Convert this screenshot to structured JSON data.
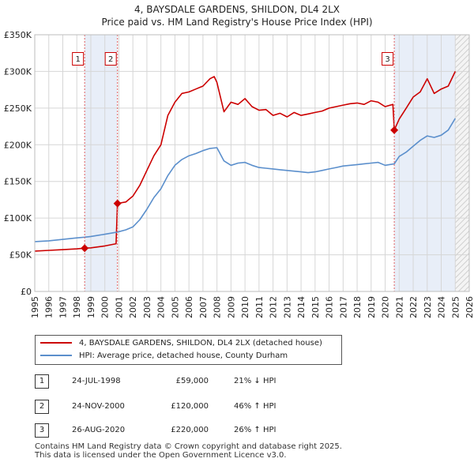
{
  "header": {
    "title_line1": "4, BAYSDALE GARDENS, SHILDON, DL4 2LX",
    "title_line2": "Price paid vs. HM Land Registry's House Price Index (HPI)"
  },
  "colors": {
    "price_line": "#cc0000",
    "hpi_line": "#5b8fcc",
    "shade": "#e8eef8",
    "marker_line": "#e06060",
    "grid": "#d6d6d6"
  },
  "chart_data": {
    "type": "line",
    "title": "4, BAYSDALE GARDENS, SHILDON, DL4 2LX",
    "subtitle": "Price paid vs. HM Land Registry's House Price Index (HPI)",
    "xlabel": "",
    "ylabel": "",
    "xlim": [
      1995,
      2026
    ],
    "ylim": [
      0,
      350000
    ],
    "grid": true,
    "y_ticks": [
      0,
      50000,
      100000,
      150000,
      200000,
      250000,
      300000,
      350000
    ],
    "y_tick_labels": [
      "£0",
      "£50K",
      "£100K",
      "£150K",
      "£200K",
      "£250K",
      "£300K",
      "£350K"
    ],
    "x_ticks": [
      1995,
      1996,
      1997,
      1998,
      1999,
      2000,
      2001,
      2002,
      2003,
      2004,
      2005,
      2006,
      2007,
      2008,
      2009,
      2010,
      2011,
      2012,
      2013,
      2014,
      2015,
      2016,
      2017,
      2018,
      2019,
      2020,
      2021,
      2022,
      2023,
      2024,
      2025,
      2026
    ],
    "x_tick_labels": [
      "1995",
      "1996",
      "1997",
      "1998",
      "1999",
      "2000",
      "2001",
      "2002",
      "2003",
      "2004",
      "2005",
      "2006",
      "2007",
      "2008",
      "2009",
      "2010",
      "2011",
      "2012",
      "2013",
      "2014",
      "2015",
      "2016",
      "2017",
      "2018",
      "2019",
      "2020",
      "2021",
      "2022",
      "2023",
      "2024",
      "2025",
      "2026"
    ],
    "shaded_ranges": [
      [
        1998.56,
        2000.9
      ],
      [
        2020.65,
        2025.0
      ]
    ],
    "future_range": [
      2025.0,
      2026.0
    ],
    "series": [
      {
        "name": "4, BAYSDALE GARDENS, SHILDON, DL4 2LX (detached house)",
        "color": "#cc0000",
        "x": [
          1995.0,
          1996.0,
          1997.0,
          1998.0,
          1998.56,
          1999.0,
          2000.0,
          2000.8,
          2000.9,
          2001.5,
          2002.0,
          2002.5,
          2003.0,
          2003.5,
          2004.0,
          2004.5,
          2005.0,
          2005.5,
          2006.0,
          2006.5,
          2007.0,
          2007.5,
          2007.8,
          2008.0,
          2008.5,
          2009.0,
          2009.5,
          2010.0,
          2010.5,
          2011.0,
          2011.5,
          2012.0,
          2012.5,
          2013.0,
          2013.5,
          2014.0,
          2014.5,
          2015.0,
          2015.5,
          2016.0,
          2016.5,
          2017.0,
          2017.5,
          2018.0,
          2018.5,
          2019.0,
          2019.5,
          2020.0,
          2020.55,
          2020.65,
          2021.0,
          2021.5,
          2022.0,
          2022.5,
          2023.0,
          2023.5,
          2024.0,
          2024.5,
          2025.0
        ],
        "values": [
          55000,
          56000,
          57000,
          58000,
          59000,
          59500,
          62000,
          65000,
          120000,
          122000,
          130000,
          145000,
          165000,
          185000,
          200000,
          240000,
          258000,
          270000,
          272000,
          276000,
          280000,
          290000,
          293000,
          285000,
          245000,
          258000,
          255000,
          263000,
          252000,
          247000,
          248000,
          240000,
          243000,
          238000,
          244000,
          240000,
          242000,
          244000,
          246000,
          250000,
          252000,
          254000,
          256000,
          257000,
          255000,
          260000,
          258000,
          252000,
          255000,
          220000,
          235000,
          250000,
          265000,
          272000,
          290000,
          270000,
          276000,
          280000,
          300000
        ]
      },
      {
        "name": "HPI: Average price, detached house, County Durham",
        "color": "#5b8fcc",
        "x": [
          1995.0,
          1996.0,
          1997.0,
          1998.0,
          1998.56,
          1999.0,
          2000.0,
          2000.9,
          2001.5,
          2002.0,
          2002.5,
          2003.0,
          2003.5,
          2004.0,
          2004.5,
          2005.0,
          2005.5,
          2006.0,
          2006.5,
          2007.0,
          2007.5,
          2008.0,
          2008.5,
          2009.0,
          2009.5,
          2010.0,
          2010.5,
          2011.0,
          2011.5,
          2012.0,
          2012.5,
          2013.0,
          2013.5,
          2014.0,
          2014.5,
          2015.0,
          2015.5,
          2016.0,
          2016.5,
          2017.0,
          2017.5,
          2018.0,
          2018.5,
          2019.0,
          2019.5,
          2020.0,
          2020.65,
          2021.0,
          2021.5,
          2022.0,
          2022.5,
          2023.0,
          2023.5,
          2024.0,
          2024.5,
          2025.0
        ],
        "values": [
          68000,
          69000,
          71000,
          73000,
          74000,
          75000,
          78000,
          81000,
          84000,
          88000,
          98000,
          112000,
          128000,
          140000,
          158000,
          172000,
          180000,
          185000,
          188000,
          192000,
          195000,
          196000,
          178000,
          172000,
          175000,
          176000,
          172000,
          169000,
          168000,
          167000,
          166000,
          165000,
          164000,
          163000,
          162000,
          163000,
          165000,
          167000,
          169000,
          171000,
          172000,
          173000,
          174000,
          175000,
          176000,
          172000,
          174000,
          184000,
          190000,
          198000,
          206000,
          212000,
          210000,
          213000,
          220000,
          236000
        ]
      }
    ],
    "transactions": [
      {
        "label": "1",
        "x": 1998.56,
        "price": 59000
      },
      {
        "label": "2",
        "x": 2000.9,
        "price": 120000
      },
      {
        "label": "3",
        "x": 2020.65,
        "price": 220000
      }
    ]
  },
  "legend": {
    "items": [
      {
        "label": "4, BAYSDALE GARDENS, SHILDON, DL4 2LX (detached house)",
        "color": "#cc0000"
      },
      {
        "label": "HPI: Average price, detached house, County Durham",
        "color": "#5b8fcc"
      }
    ]
  },
  "table": {
    "rows": [
      {
        "num": "1",
        "date": "24-JUL-1998",
        "price": "£59,000",
        "hpi": "21% ↓ HPI"
      },
      {
        "num": "2",
        "date": "24-NOV-2000",
        "price": "£120,000",
        "hpi": "46% ↑ HPI"
      },
      {
        "num": "3",
        "date": "26-AUG-2020",
        "price": "£220,000",
        "hpi": "26% ↑ HPI"
      }
    ]
  },
  "footer": {
    "line1": "Contains HM Land Registry data © Crown copyright and database right 2025.",
    "line2": "This data is licensed under the Open Government Licence v3.0."
  }
}
